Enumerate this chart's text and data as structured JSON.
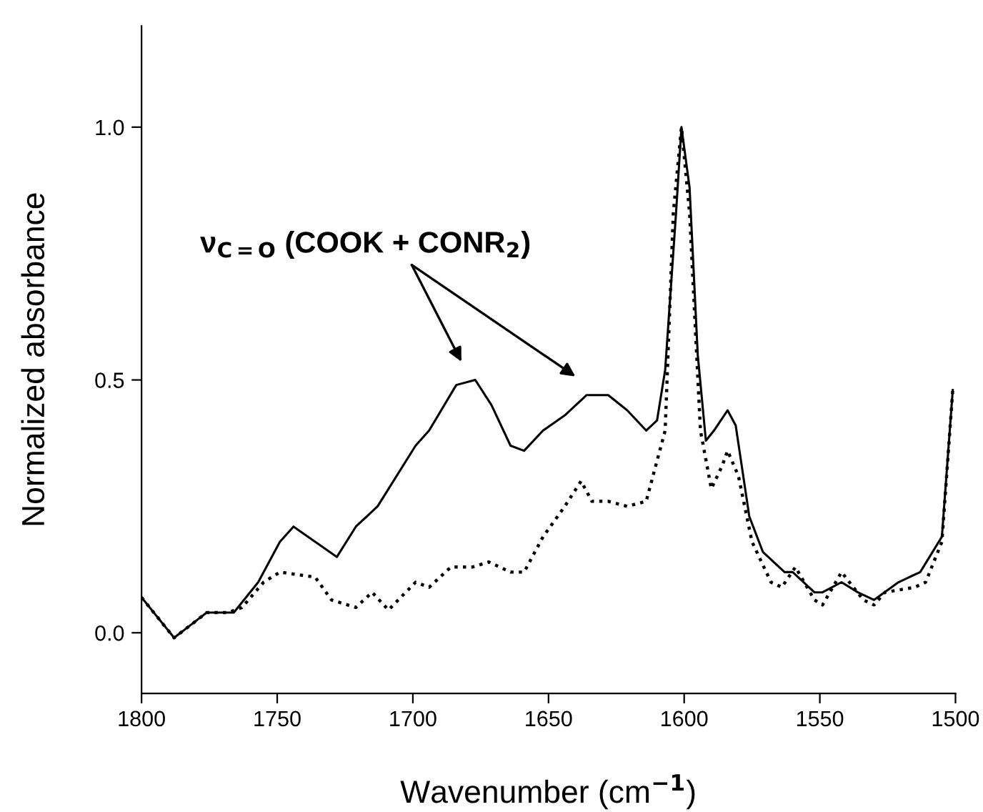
{
  "chart_data": {
    "type": "line",
    "xlabel": "Wavenumber (cm$^{−1}$)",
    "ylabel": "Normalized absorbance",
    "xlim": [
      1800,
      1500
    ],
    "xticks": [
      1800,
      1750,
      1700,
      1650,
      1600,
      1550,
      1500
    ],
    "ylim": [
      -0.12,
      1.2
    ],
    "yticks": [
      {
        "value": 0,
        "label": "0.0"
      },
      0.5,
      {
        "value": 1,
        "label": "1.0"
      }
    ],
    "grid": false,
    "legend": false,
    "marker": "none",
    "annotations": [
      "ν$_{C=O}$ (COOK + CONR$_{2}$)"
    ],
    "series": [
      {
        "color": "#000000",
        "line_style": "solid",
        "x": [
          1800,
          1788,
          1776,
          1766,
          1757,
          1749,
          1744,
          1736,
          1728,
          1721,
          1713,
          1699,
          1694,
          1684,
          1677,
          1671,
          1664,
          1659,
          1652,
          1644,
          1636,
          1628,
          1621,
          1614,
          1610,
          1607,
          1603,
          1601,
          1598,
          1595,
          1592,
          1589,
          1584,
          1581,
          1576,
          1571,
          1563,
          1560,
          1552,
          1549,
          1542,
          1536,
          1530,
          1521,
          1513,
          1505,
          1501
        ],
        "values": [
          0.07,
          -0.01,
          0.04,
          0.04,
          0.1,
          0.18,
          0.21,
          0.18,
          0.15,
          0.21,
          0.25,
          0.37,
          0.4,
          0.49,
          0.5,
          0.45,
          0.37,
          0.36,
          0.4,
          0.43,
          0.47,
          0.47,
          0.44,
          0.4,
          0.42,
          0.52,
          0.83,
          1.0,
          0.88,
          0.55,
          0.38,
          0.4,
          0.44,
          0.41,
          0.23,
          0.16,
          0.12,
          0.12,
          0.08,
          0.08,
          0.1,
          0.08,
          0.065,
          0.1,
          0.12,
          0.19,
          0.48
        ]
      },
      {
        "color": "#000000",
        "line_style": "dotted",
        "x": [
          1800,
          1788,
          1776,
          1768,
          1763,
          1755,
          1749,
          1736,
          1730,
          1721,
          1715,
          1709,
          1699,
          1694,
          1686,
          1678,
          1672,
          1664,
          1659,
          1652,
          1644,
          1638,
          1634,
          1628,
          1621,
          1614,
          1607,
          1604,
          1601,
          1598,
          1594,
          1590,
          1586,
          1584,
          1580,
          1575,
          1568,
          1564,
          1559,
          1552,
          1549,
          1542,
          1534,
          1530,
          1526,
          1515,
          1511,
          1505,
          1501
        ],
        "values": [
          0.07,
          -0.01,
          0.04,
          0.04,
          0.05,
          0.1,
          0.12,
          0.11,
          0.065,
          0.05,
          0.08,
          0.045,
          0.1,
          0.09,
          0.13,
          0.13,
          0.14,
          0.12,
          0.12,
          0.19,
          0.25,
          0.3,
          0.26,
          0.26,
          0.25,
          0.26,
          0.4,
          0.83,
          1.0,
          0.83,
          0.4,
          0.285,
          0.33,
          0.36,
          0.31,
          0.18,
          0.1,
          0.09,
          0.13,
          0.065,
          0.055,
          0.12,
          0.065,
          0.055,
          0.08,
          0.09,
          0.1,
          0.18,
          0.48
        ]
      }
    ]
  }
}
